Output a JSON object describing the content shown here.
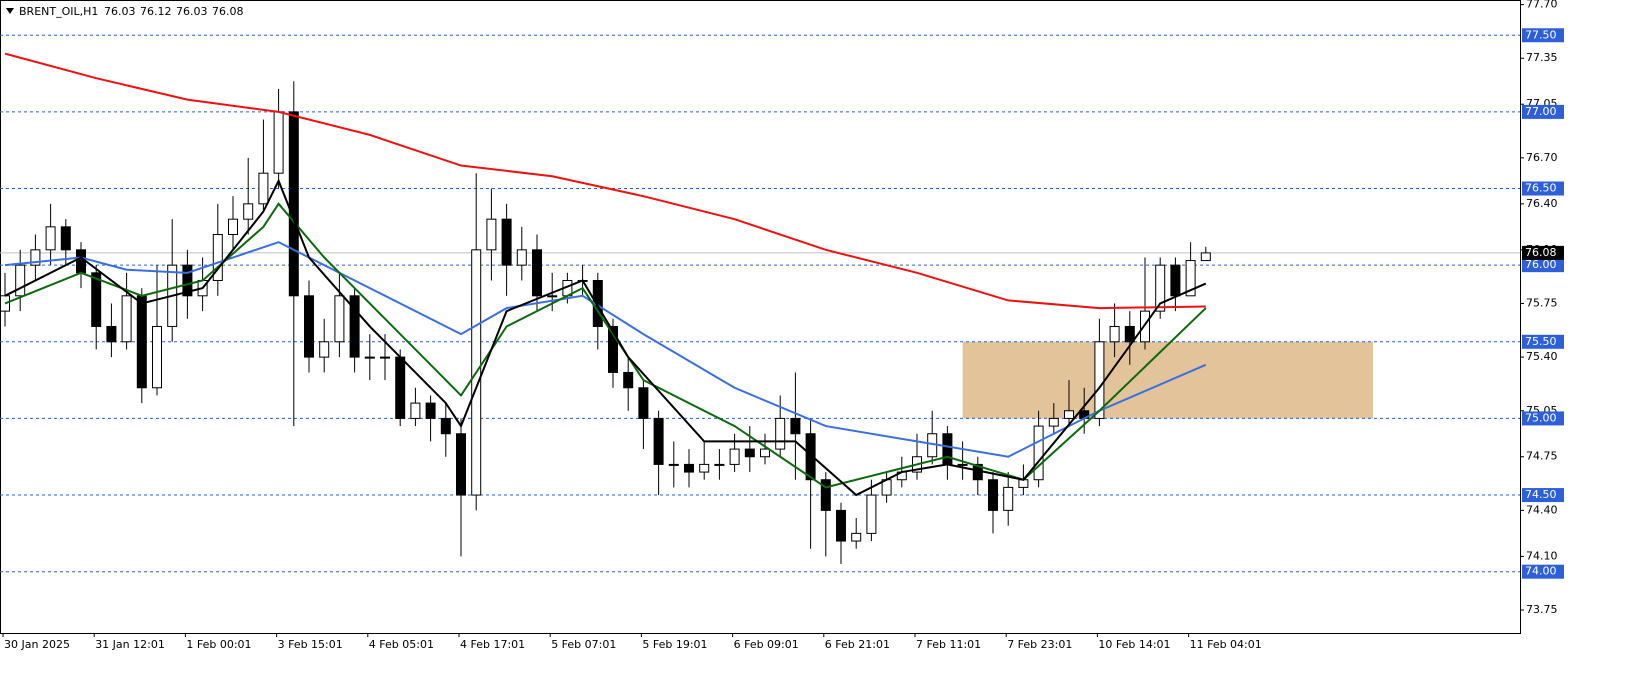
{
  "chart_data": {
    "type": "candlestick",
    "title": "BRENT_OIL,H1",
    "last_ohlc": [
      76.03,
      76.12,
      76.03,
      76.08
    ],
    "categories": [
      "30 Jan 2025",
      null,
      null,
      null,
      null,
      null,
      "31 Jan 12:01",
      null,
      null,
      null,
      null,
      null,
      "1 Feb 00:01",
      null,
      null,
      null,
      null,
      null,
      "3 Feb 15:01",
      null,
      null,
      null,
      null,
      null,
      "4 Feb 05:01",
      null,
      null,
      null,
      null,
      null,
      "4 Feb 17:01",
      null,
      null,
      null,
      null,
      null,
      "5 Feb 07:01",
      null,
      null,
      null,
      null,
      null,
      "5 Feb 19:01",
      null,
      null,
      null,
      null,
      null,
      "6 Feb 09:01",
      null,
      null,
      null,
      null,
      null,
      "6 Feb 21:01",
      null,
      null,
      null,
      null,
      null,
      "7 Feb 11:01",
      null,
      null,
      null,
      null,
      null,
      "7 Feb 23:01",
      null,
      null,
      null,
      null,
      null,
      "10 Feb 14:01",
      null,
      null,
      null,
      null,
      null,
      "11 Feb 04:01",
      null
    ],
    "open": [
      75.7,
      75.8,
      76.0,
      76.1,
      76.25,
      76.1,
      75.95,
      75.6,
      75.5,
      75.8,
      75.2,
      75.6,
      76.0,
      75.8,
      75.9,
      76.2,
      76.3,
      76.4,
      76.6,
      77.0,
      75.8,
      75.4,
      75.5,
      75.8,
      75.4,
      75.4,
      75.4,
      75.0,
      75.1,
      75.0,
      74.9,
      74.5,
      76.1,
      76.3,
      76.0,
      76.1,
      75.8,
      75.8,
      75.9,
      75.9,
      75.6,
      75.3,
      75.2,
      75.0,
      74.7,
      74.7,
      74.65,
      74.7,
      74.7,
      74.8,
      74.75,
      74.8,
      75.0,
      74.9,
      74.6,
      74.4,
      74.2,
      74.25,
      74.5,
      74.6,
      74.65,
      74.75,
      74.9,
      74.7,
      74.7,
      74.6,
      74.4,
      74.55,
      74.6,
      74.95,
      75.0,
      75.05,
      75.0,
      75.5,
      75.6,
      75.5,
      75.7,
      76.0,
      75.8,
      76.03
    ],
    "high": [
      75.95,
      76.1,
      76.2,
      76.4,
      76.3,
      76.15,
      76.0,
      75.75,
      75.95,
      75.85,
      76.0,
      76.3,
      76.1,
      76.05,
      76.4,
      76.45,
      76.7,
      76.95,
      77.15,
      77.2,
      75.9,
      75.65,
      75.95,
      75.85,
      75.55,
      75.55,
      75.45,
      75.2,
      75.15,
      75.1,
      75.0,
      76.6,
      76.5,
      76.4,
      76.25,
      76.2,
      75.95,
      75.95,
      76.0,
      75.95,
      75.65,
      75.4,
      75.25,
      75.05,
      74.85,
      74.8,
      74.85,
      74.8,
      74.9,
      74.95,
      74.9,
      75.15,
      75.3,
      75.0,
      74.65,
      74.45,
      74.35,
      74.6,
      74.65,
      74.75,
      74.9,
      75.05,
      74.95,
      74.85,
      74.75,
      74.65,
      74.65,
      74.7,
      75.05,
      75.1,
      75.25,
      75.2,
      75.65,
      75.75,
      75.7,
      76.05,
      76.05,
      76.05,
      76.15,
      76.12
    ],
    "low": [
      75.6,
      75.7,
      75.9,
      76.0,
      76.0,
      75.85,
      75.45,
      75.4,
      75.45,
      75.1,
      75.15,
      75.5,
      75.65,
      75.7,
      75.8,
      76.1,
      76.2,
      76.35,
      76.5,
      74.95,
      75.3,
      75.3,
      75.4,
      75.3,
      75.25,
      75.25,
      74.95,
      74.95,
      74.85,
      74.75,
      74.1,
      74.4,
      75.9,
      75.8,
      75.9,
      75.7,
      75.7,
      75.75,
      75.8,
      75.45,
      75.2,
      75.05,
      74.8,
      74.5,
      74.55,
      74.55,
      74.6,
      74.6,
      74.65,
      74.65,
      74.7,
      74.75,
      74.6,
      74.15,
      74.1,
      74.05,
      74.15,
      74.2,
      74.45,
      74.55,
      74.6,
      74.7,
      74.6,
      74.6,
      74.5,
      74.25,
      74.3,
      74.5,
      74.55,
      74.9,
      74.95,
      74.9,
      74.95,
      75.4,
      75.35,
      75.45,
      75.65,
      75.7,
      75.8,
      76.03
    ],
    "close": [
      75.8,
      76.0,
      76.1,
      76.25,
      76.1,
      75.95,
      75.6,
      75.5,
      75.8,
      75.2,
      75.6,
      76.0,
      75.8,
      75.9,
      76.2,
      76.3,
      76.4,
      76.6,
      77.0,
      75.8,
      75.4,
      75.5,
      75.8,
      75.4,
      75.4,
      75.4,
      75.0,
      75.1,
      75.0,
      74.9,
      74.5,
      76.1,
      76.3,
      76.0,
      76.1,
      75.8,
      75.8,
      75.9,
      75.9,
      75.6,
      75.3,
      75.2,
      75.0,
      74.7,
      74.7,
      74.65,
      74.7,
      74.7,
      74.8,
      74.75,
      74.8,
      75.0,
      74.9,
      74.6,
      74.4,
      74.2,
      74.25,
      74.5,
      74.6,
      74.65,
      74.75,
      74.9,
      74.7,
      74.7,
      74.6,
      74.4,
      74.55,
      74.6,
      74.95,
      75.0,
      75.05,
      75.0,
      75.5,
      75.6,
      75.5,
      75.7,
      76.0,
      75.8,
      76.03,
      76.08
    ],
    "ma_lines": [
      {
        "color": "#ee1111",
        "x": [
          0,
          6,
          12,
          18,
          24,
          30,
          36,
          42,
          48,
          54,
          60,
          66,
          72,
          79
        ],
        "values": [
          77.38,
          77.22,
          77.08,
          77.0,
          76.85,
          76.65,
          76.58,
          76.45,
          76.3,
          76.1,
          75.95,
          75.77,
          75.72,
          75.73
        ]
      },
      {
        "color": "#3a6fe0",
        "x": [
          0,
          5,
          8,
          12,
          18,
          24,
          30,
          33,
          38,
          42,
          48,
          54,
          60,
          66,
          72,
          79
        ],
        "values": [
          76.0,
          76.05,
          75.97,
          75.95,
          76.15,
          75.85,
          75.55,
          75.72,
          75.8,
          75.55,
          75.2,
          74.95,
          74.85,
          74.75,
          75.05,
          75.35
        ]
      },
      {
        "color": "#0b6b0b",
        "x": [
          0,
          5,
          9,
          13,
          17,
          18,
          21,
          24,
          29,
          30,
          33,
          38,
          42,
          48,
          54,
          58,
          62,
          67,
          72,
          79
        ],
        "values": [
          75.75,
          75.95,
          75.8,
          75.9,
          76.25,
          76.4,
          76.05,
          75.75,
          75.25,
          75.15,
          75.6,
          75.85,
          75.25,
          74.95,
          74.55,
          74.65,
          74.75,
          74.6,
          75.05,
          75.72
        ]
      },
      {
        "color": "#000000",
        "x": [
          0,
          5,
          9,
          13,
          17,
          18,
          20,
          24,
          29,
          30,
          33,
          38,
          41,
          46,
          52,
          56,
          59,
          62,
          67,
          72,
          76,
          79
        ],
        "values": [
          75.8,
          76.05,
          75.75,
          75.85,
          76.35,
          76.55,
          76.05,
          75.6,
          75.1,
          74.95,
          75.7,
          75.9,
          75.4,
          74.85,
          74.85,
          74.5,
          74.65,
          74.7,
          74.6,
          75.2,
          75.75,
          75.88
        ]
      }
    ],
    "zone": {
      "x": [
        63,
        90
      ],
      "y": [
        75.0,
        75.5
      ],
      "color": "#deb887"
    },
    "ylim": [
      73.6,
      77.73
    ],
    "xlim": [
      -0.5,
      99.5
    ],
    "yticks": [
      {
        "value": 77.7,
        "label": "77.70"
      },
      {
        "value": 77.35,
        "label": "77.35"
      },
      {
        "value": 77.05,
        "label": "77.05"
      },
      {
        "value": 76.7,
        "label": "76.70"
      },
      {
        "value": 76.4,
        "label": "76.40"
      },
      {
        "value": 76.1,
        "label": "76.10"
      },
      {
        "value": 75.75,
        "label": "75.75"
      },
      {
        "value": 75.4,
        "label": "75.40"
      },
      {
        "value": 75.05,
        "label": "75.05"
      },
      {
        "value": 74.75,
        "label": "74.75"
      },
      {
        "value": 74.4,
        "label": "74.40"
      },
      {
        "value": 74.1,
        "label": "74.10"
      },
      {
        "value": 73.75,
        "label": "73.75"
      }
    ],
    "levels": [
      {
        "value": 77.5,
        "label": "77.50"
      },
      {
        "value": 77.0,
        "label": "77.00"
      },
      {
        "value": 76.5,
        "label": "76.50"
      },
      {
        "value": 76.0,
        "label": "76.00"
      },
      {
        "value": 75.5,
        "label": "75.50"
      },
      {
        "value": 75.0,
        "label": "75.00"
      },
      {
        "value": 74.5,
        "label": "74.50"
      },
      {
        "value": 74.0,
        "label": "74.00"
      }
    ],
    "level_color": "#2d5fd8"
  }
}
